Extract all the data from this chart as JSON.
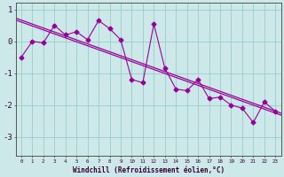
{
  "x": [
    0,
    1,
    2,
    3,
    4,
    5,
    6,
    7,
    8,
    9,
    10,
    11,
    12,
    13,
    14,
    15,
    16,
    17,
    18,
    19,
    20,
    21,
    22,
    23
  ],
  "y": [
    -0.5,
    0.0,
    -0.05,
    0.5,
    0.2,
    0.3,
    0.05,
    0.65,
    0.4,
    0.05,
    -1.2,
    -1.3,
    0.55,
    -0.85,
    -1.5,
    -1.55,
    -1.2,
    -1.8,
    -1.75,
    -2.0,
    -2.1,
    -2.55,
    -1.9,
    -2.2
  ],
  "line_color": "#990099",
  "trend_color": "#990099",
  "bg_color": "#cce8e8",
  "grid_color": "#99cccc",
  "axis_color": "#555555",
  "ylabel_values": [
    1,
    0,
    -1,
    -2,
    -3
  ],
  "xlabel": "Windchill (Refroidissement éolien,°C)",
  "xlim": [
    -0.5,
    23.5
  ],
  "ylim": [
    -3.6,
    1.2
  ],
  "figsize": [
    3.2,
    2.0
  ],
  "dpi": 100
}
